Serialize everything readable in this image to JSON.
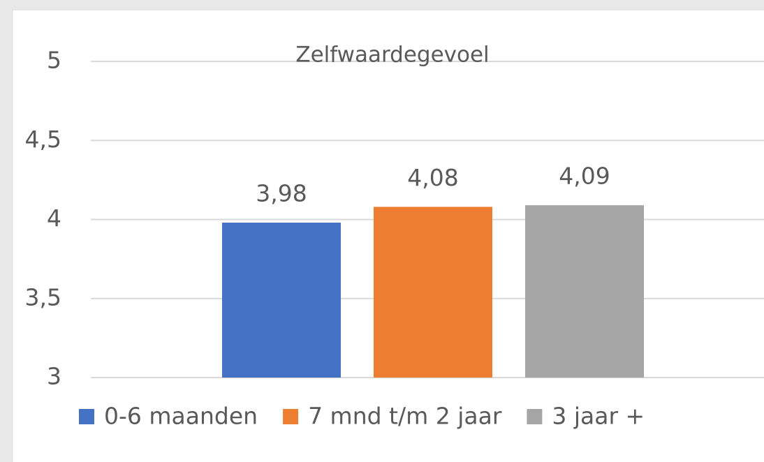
{
  "chart_data": {
    "type": "bar",
    "title": "Zelfwaardegevoel",
    "categories": [
      null
    ],
    "series": [
      {
        "name": "0-6 maanden",
        "color": "#4472c4",
        "values": [
          3.98
        ],
        "value_labels": [
          "3,98"
        ]
      },
      {
        "name": "7 mnd t/m 2 jaar",
        "color": "#ed7d31",
        "values": [
          4.08
        ],
        "value_labels": [
          "4,08"
        ]
      },
      {
        "name": "3 jaar +",
        "color": "#a5a5a5",
        "values": [
          4.09
        ],
        "value_labels": [
          "4,09"
        ]
      }
    ],
    "ylim": [
      3,
      5
    ],
    "yticks": [
      3,
      {
        "value": 3.5,
        "label": "3,5"
      },
      4,
      {
        "value": 4.5,
        "label": "4,5"
      },
      5
    ],
    "grid": true,
    "legend": "bottom"
  }
}
